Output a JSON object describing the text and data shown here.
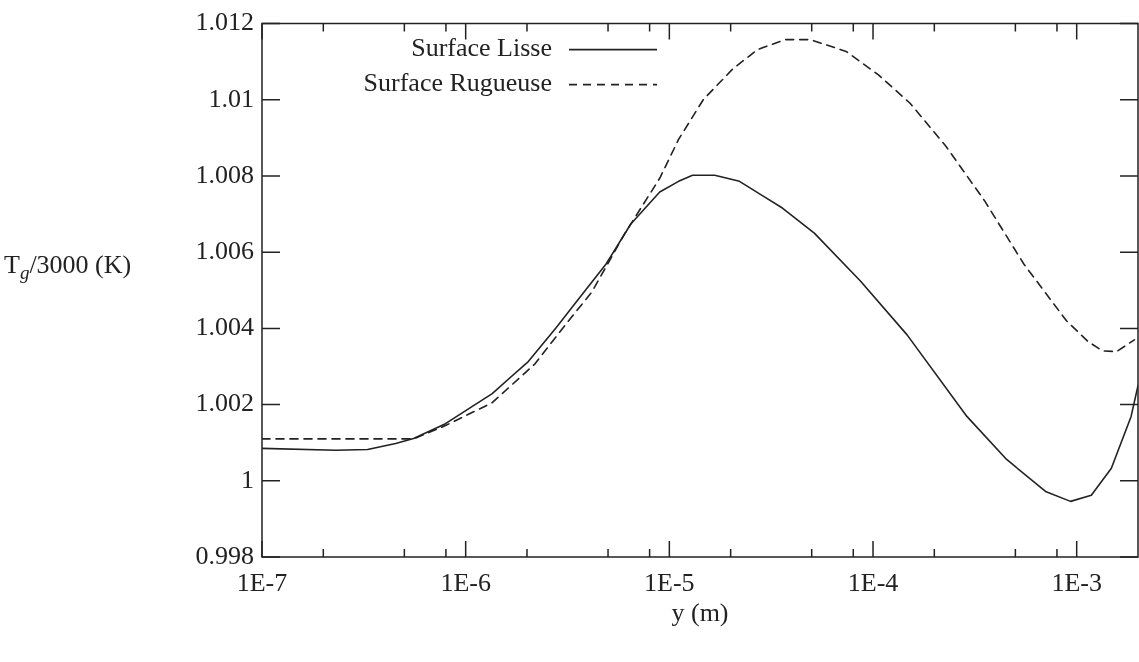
{
  "chart_data": {
    "type": "line",
    "xlabel": "y (m)",
    "ylabel": "T$_{g}$/3000 (K)",
    "log": "x",
    "legend": "top left",
    "grid": false,
    "marker": "none",
    "xlim": [
      1e-07,
      0.002
    ],
    "ylim": [
      0.998,
      1.012
    ],
    "xticks": [
      {
        "value": 1e-07,
        "label": "1E-7"
      },
      {
        "value": 2e-07,
        "label": null
      },
      {
        "value": 5e-07,
        "label": null
      },
      {
        "value": 8e-07,
        "label": null
      },
      {
        "value": 1e-06,
        "label": "1E-6"
      },
      {
        "value": 2e-06,
        "label": null
      },
      {
        "value": 5e-06,
        "label": null
      },
      {
        "value": 8e-06,
        "label": null
      },
      {
        "value": 1e-05,
        "label": "1E-5"
      },
      {
        "value": 2e-05,
        "label": null
      },
      {
        "value": 5e-05,
        "label": null
      },
      {
        "value": 8e-05,
        "label": null
      },
      {
        "value": 0.0001,
        "label": "1E-4"
      },
      {
        "value": 0.0002,
        "label": null
      },
      {
        "value": 0.0005,
        "label": null
      },
      {
        "value": 0.0008,
        "label": null
      },
      {
        "value": 0.001,
        "label": "1E-3"
      }
    ],
    "yticks": [
      0.998,
      1,
      1.002,
      1.004,
      1.006,
      1.008,
      1.01,
      1.012
    ],
    "series": [
      {
        "name": "Surface Lisse",
        "color": "#222222",
        "line_style": "solid",
        "x": [
          1e-07,
          2.3e-07,
          3.3e-07,
          4.53e-07,
          5.55e-07,
          7.96e-07,
          1.35e-06,
          2.03e-06,
          2.78e-06,
          3.68e-06,
          4.89e-06,
          6.47e-06,
          8.97e-06,
          1.11e-05,
          1.3e-05,
          1.67e-05,
          2.21e-05,
          3.59e-05,
          5.15e-05,
          8.65e-05,
          0.000147,
          0.000289,
          0.000453,
          0.000703,
          0.000933,
          0.00118,
          0.00148,
          0.00185,
          0.002
        ],
        "values": [
          1.00085,
          1.0008,
          1.00082,
          1.00098,
          1.00111,
          1.0015,
          1.00229,
          1.00313,
          1.00402,
          1.00485,
          1.00569,
          1.00674,
          1.00758,
          1.00786,
          1.00802,
          1.00802,
          1.00786,
          1.00716,
          1.0065,
          1.00525,
          1.00383,
          1.00169,
          1.00056,
          0.99972,
          0.99946,
          0.99962,
          1.00033,
          1.00169,
          1.0025
        ]
      },
      {
        "name": "Surface Rugueuse",
        "color": "#222222",
        "line_style": "dashed",
        "x": [
          1e-07,
          5.55e-07,
          7.96e-07,
          1.35e-06,
          2.19e-06,
          3.01e-06,
          4.17e-06,
          5.98e-06,
          8.97e-06,
          1.11e-05,
          1.47e-05,
          2.04e-05,
          2.71e-05,
          3.71e-05,
          4.92e-05,
          7.38e-05,
          0.000106,
          0.000152,
          0.000228,
          0.000354,
          0.00055,
          0.000891,
          0.00114,
          0.00134,
          0.00157,
          0.00192
        ],
        "values": [
          1.0011,
          1.0011,
          1.00145,
          1.00205,
          1.00307,
          1.00402,
          1.00496,
          1.00645,
          1.00794,
          1.00896,
          1.01001,
          1.0108,
          1.01132,
          1.01158,
          1.01158,
          1.01127,
          1.01066,
          1.00991,
          1.00878,
          1.00734,
          1.00569,
          1.0042,
          1.00365,
          1.00341,
          1.00339,
          1.0037
        ]
      }
    ]
  }
}
